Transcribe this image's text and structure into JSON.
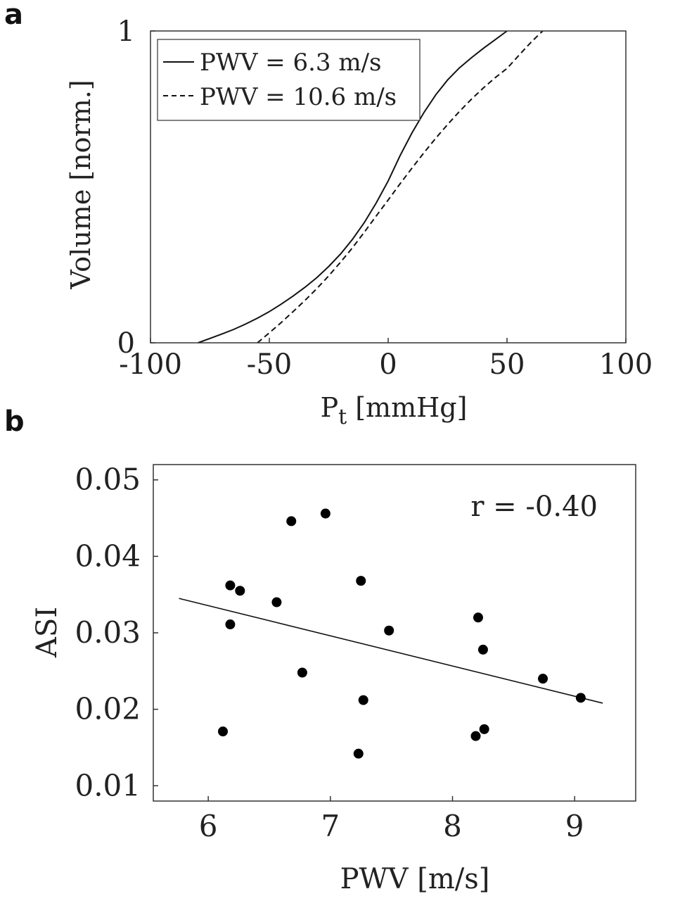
{
  "chart_data": [
    {
      "panel": "a",
      "type": "line",
      "title": "",
      "xlabel": "P",
      "xlabel_sub": "t",
      "xlabel_unit": "[mmHg]",
      "ylabel": "Volume [norm.]",
      "xlim": [
        -100,
        100
      ],
      "ylim": [
        0,
        1
      ],
      "xticks": [
        -100,
        -50,
        0,
        50,
        100
      ],
      "xtick_labels": [
        "-100",
        "-50",
        "0",
        "50",
        "100"
      ],
      "yticks": [
        0,
        1
      ],
      "ytick_labels": [
        "0",
        "1"
      ],
      "grid": false,
      "legend_position": "top-left",
      "series": [
        {
          "name": "PWV = 6.3 m/s",
          "style": "solid",
          "x": [
            -80,
            -75,
            -70,
            -65,
            -60,
            -55,
            -50,
            -45,
            -40,
            -35,
            -30,
            -25,
            -20,
            -15,
            -10,
            -5,
            0,
            5,
            10,
            15,
            20,
            25,
            30,
            35,
            40,
            45,
            50
          ],
          "y": [
            0.0,
            0.014,
            0.028,
            0.043,
            0.06,
            0.079,
            0.1,
            0.124,
            0.15,
            0.178,
            0.209,
            0.245,
            0.285,
            0.332,
            0.386,
            0.449,
            0.519,
            0.6,
            0.673,
            0.738,
            0.795,
            0.843,
            0.882,
            0.914,
            0.944,
            0.972,
            1.0
          ]
        },
        {
          "name": "PWV = 10.6 m/s",
          "style": "dashed",
          "x": [
            -55,
            -50,
            -45,
            -40,
            -35,
            -30,
            -25,
            -20,
            -15,
            -10,
            -5,
            0,
            5,
            10,
            15,
            20,
            25,
            30,
            35,
            40,
            45,
            50,
            55,
            60,
            65
          ],
          "y": [
            0.0,
            0.032,
            0.065,
            0.1,
            0.136,
            0.174,
            0.215,
            0.259,
            0.305,
            0.355,
            0.407,
            0.458,
            0.51,
            0.56,
            0.609,
            0.656,
            0.7,
            0.742,
            0.781,
            0.817,
            0.85,
            0.88,
            0.922,
            0.963,
            1.0
          ]
        }
      ]
    },
    {
      "panel": "b",
      "type": "scatter",
      "title": "",
      "xlabel": "PWV [m/s]",
      "ylabel": "ASI",
      "xlim": [
        5.55,
        9.5
      ],
      "ylim": [
        0.008,
        0.052
      ],
      "xticks": [
        6,
        7,
        8,
        9
      ],
      "xtick_labels": [
        "6",
        "7",
        "8",
        "9"
      ],
      "yticks": [
        0.01,
        0.02,
        0.03,
        0.04,
        0.05
      ],
      "ytick_labels": [
        "0.01",
        "0.02",
        "0.03",
        "0.04",
        "0.05"
      ],
      "grid": false,
      "annotation": "r = -0.40",
      "points": [
        {
          "x": 6.12,
          "y": 0.0171
        },
        {
          "x": 6.18,
          "y": 0.0362
        },
        {
          "x": 6.18,
          "y": 0.0311
        },
        {
          "x": 6.26,
          "y": 0.0355
        },
        {
          "x": 6.56,
          "y": 0.034
        },
        {
          "x": 6.68,
          "y": 0.0446
        },
        {
          "x": 6.77,
          "y": 0.0248
        },
        {
          "x": 6.96,
          "y": 0.0456
        },
        {
          "x": 7.23,
          "y": 0.0142
        },
        {
          "x": 7.25,
          "y": 0.0368
        },
        {
          "x": 7.27,
          "y": 0.0212
        },
        {
          "x": 7.48,
          "y": 0.0303
        },
        {
          "x": 8.19,
          "y": 0.0165
        },
        {
          "x": 8.21,
          "y": 0.032
        },
        {
          "x": 8.25,
          "y": 0.0278
        },
        {
          "x": 8.26,
          "y": 0.0174
        },
        {
          "x": 8.74,
          "y": 0.024
        },
        {
          "x": 9.05,
          "y": 0.0215
        }
      ],
      "fit_line": {
        "x": [
          5.76,
          9.23
        ],
        "y": [
          0.0345,
          0.0208
        ]
      }
    }
  ]
}
